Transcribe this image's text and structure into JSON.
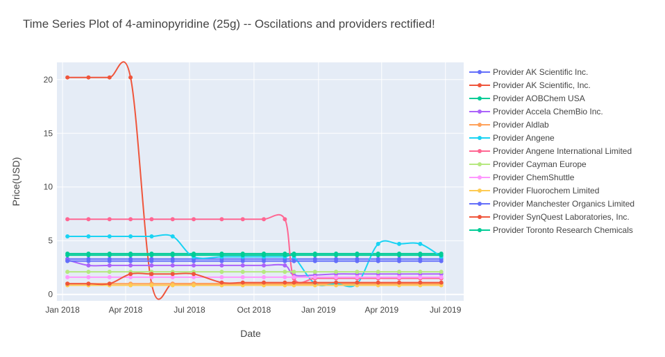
{
  "chart_data": {
    "type": "line",
    "title": "Time Series Plot of 4-aminopyridine (25g) -- Oscilations and providers rectified!",
    "xlabel": "Date",
    "ylabel": "Price(USD)",
    "xlim": [
      "2017-12-24",
      "2019-07-27"
    ],
    "ylim": [
      -0.6,
      21.6
    ],
    "x_ticks": [
      {
        "date": "2018-01-01",
        "label": "Jan 2018"
      },
      {
        "date": "2018-04-01",
        "label": "Apr 2018"
      },
      {
        "date": "2018-07-01",
        "label": "Jul 2018"
      },
      {
        "date": "2018-10-01",
        "label": "Oct 2018"
      },
      {
        "date": "2019-01-01",
        "label": "Jan 2019"
      },
      {
        "date": "2019-04-01",
        "label": "Apr 2019"
      },
      {
        "date": "2019-07-01",
        "label": "Jul 2019"
      }
    ],
    "y_ticks": [
      0,
      5,
      10,
      15,
      20
    ],
    "grid": true,
    "legend_position": "right",
    "plot_bgcolor": "#e5ecf6",
    "series": [
      {
        "name": "Provider AK Scientific Inc.",
        "color": "#636efa",
        "x": [
          "2018-01-08",
          "2018-02-07",
          "2018-03-09",
          "2018-04-08",
          "2018-05-08",
          "2018-06-07",
          "2018-07-07",
          "2018-08-16",
          "2018-09-15",
          "2018-10-15",
          "2018-11-14",
          "2018-11-27",
          "2018-12-27",
          "2019-01-26",
          "2019-02-25",
          "2019-03-27",
          "2019-04-26",
          "2019-05-26",
          "2019-06-25"
        ],
        "y": [
          3.3,
          3.3,
          3.3,
          3.3,
          3.3,
          3.3,
          3.3,
          3.3,
          3.3,
          3.3,
          3.3,
          3.3,
          3.3,
          3.3,
          3.3,
          3.3,
          3.3,
          3.3,
          3.3
        ]
      },
      {
        "name": "Provider AK Scientific, Inc.",
        "color": "#ef553b",
        "x": [
          "2018-01-08",
          "2018-02-07",
          "2018-03-09",
          "2018-04-08",
          "2018-05-08",
          "2018-06-07",
          "2018-07-07",
          "2018-08-16",
          "2018-09-15",
          "2018-10-15",
          "2018-11-14",
          "2018-11-27",
          "2018-12-27",
          "2019-01-26",
          "2019-02-25",
          "2019-03-27",
          "2019-04-26",
          "2019-05-26",
          "2019-06-25"
        ],
        "y": [
          20.2,
          20.2,
          20.2,
          20.2,
          1.0,
          1.0,
          1.0,
          1.0,
          1.0,
          1.0,
          1.0,
          1.0,
          1.0,
          1.0,
          1.0,
          1.0,
          1.0,
          1.0,
          1.0
        ]
      },
      {
        "name": "Provider AOBChem USA",
        "color": "#00cc96",
        "x": [
          "2018-01-08",
          "2018-02-07",
          "2018-03-09",
          "2018-04-08",
          "2018-05-08",
          "2018-06-07",
          "2018-07-07",
          "2018-08-16",
          "2018-09-15",
          "2018-10-15",
          "2018-11-14",
          "2018-11-27",
          "2018-12-27",
          "2019-01-26",
          "2019-02-25",
          "2019-03-27",
          "2019-04-26",
          "2019-05-26",
          "2019-06-25"
        ],
        "y": [
          3.8,
          3.8,
          3.8,
          3.8,
          3.8,
          3.8,
          3.8,
          3.8,
          3.8,
          3.8,
          3.8,
          3.8,
          3.8,
          3.8,
          3.8,
          3.8,
          3.8,
          3.8,
          3.8
        ]
      },
      {
        "name": "Provider Accela ChemBio Inc.",
        "color": "#ab63fa",
        "x": [
          "2018-01-08",
          "2018-02-07",
          "2018-03-09",
          "2018-04-08",
          "2018-05-08",
          "2018-06-07",
          "2018-07-07",
          "2018-08-16",
          "2018-09-15",
          "2018-10-15",
          "2018-11-14",
          "2018-11-27",
          "2018-12-27",
          "2019-01-26",
          "2019-02-25",
          "2019-03-27",
          "2019-04-26",
          "2019-05-26",
          "2019-06-25"
        ],
        "y": [
          3.2,
          2.7,
          2.7,
          2.7,
          2.7,
          2.7,
          2.7,
          2.7,
          2.7,
          2.7,
          2.7,
          1.8,
          1.8,
          1.9,
          1.9,
          1.9,
          1.9,
          1.9,
          1.9
        ]
      },
      {
        "name": "Provider Aldlab",
        "color": "#ffa15a",
        "x": [
          "2018-01-08",
          "2018-02-07",
          "2018-03-09",
          "2018-04-08",
          "2018-05-08",
          "2018-06-07",
          "2018-07-07",
          "2018-08-16",
          "2018-09-15",
          "2018-10-15",
          "2018-11-14",
          "2018-11-27",
          "2018-12-27",
          "2019-01-26",
          "2019-02-25",
          "2019-03-27",
          "2019-04-26",
          "2019-05-26",
          "2019-06-25"
        ],
        "y": [
          1.0,
          1.0,
          1.0,
          1.0,
          1.0,
          1.0,
          1.0,
          1.0,
          1.0,
          1.0,
          1.0,
          1.0,
          1.0,
          1.0,
          1.0,
          1.0,
          1.0,
          1.0,
          1.0
        ]
      },
      {
        "name": "Provider Angene",
        "color": "#19d3f3",
        "x": [
          "2018-01-08",
          "2018-02-07",
          "2018-03-09",
          "2018-04-08",
          "2018-05-08",
          "2018-06-07",
          "2018-07-07",
          "2018-08-16",
          "2018-09-15",
          "2018-10-15",
          "2018-11-14",
          "2018-11-27",
          "2018-12-27",
          "2019-01-26",
          "2019-02-25",
          "2019-03-27",
          "2019-04-26",
          "2019-05-26",
          "2019-06-25"
        ],
        "y": [
          5.4,
          5.4,
          5.4,
          5.4,
          5.4,
          5.4,
          3.5,
          3.5,
          3.5,
          3.5,
          3.5,
          3.5,
          1.0,
          1.0,
          1.0,
          4.7,
          4.7,
          4.7,
          3.5
        ]
      },
      {
        "name": "Provider Angene International Limited",
        "color": "#ff6692",
        "x": [
          "2018-01-08",
          "2018-02-07",
          "2018-03-09",
          "2018-04-08",
          "2018-05-08",
          "2018-06-07",
          "2018-07-07",
          "2018-08-16",
          "2018-09-15",
          "2018-10-15",
          "2018-11-14",
          "2018-11-27",
          "2018-12-27",
          "2019-01-26",
          "2019-02-25",
          "2019-03-27",
          "2019-04-26",
          "2019-05-26",
          "2019-06-25"
        ],
        "y": [
          7.0,
          7.0,
          7.0,
          7.0,
          7.0,
          7.0,
          7.0,
          7.0,
          7.0,
          7.0,
          7.0,
          1.5,
          1.5,
          1.5,
          1.5,
          1.5,
          1.5,
          1.5,
          1.5
        ]
      },
      {
        "name": "Provider Cayman Europe",
        "color": "#b6e880",
        "x": [
          "2018-01-08",
          "2018-02-07",
          "2018-03-09",
          "2018-04-08",
          "2018-05-08",
          "2018-06-07",
          "2018-07-07",
          "2018-08-16",
          "2018-09-15",
          "2018-10-15",
          "2018-11-14",
          "2018-11-27",
          "2018-12-27",
          "2019-01-26",
          "2019-02-25",
          "2019-03-27",
          "2019-04-26",
          "2019-05-26",
          "2019-06-25"
        ],
        "y": [
          2.1,
          2.1,
          2.1,
          2.1,
          2.1,
          2.1,
          2.1,
          2.1,
          2.1,
          2.1,
          2.1,
          2.1,
          2.1,
          2.1,
          2.1,
          2.1,
          2.1,
          2.1,
          2.1
        ]
      },
      {
        "name": "Provider ChemShuttle",
        "color": "#ff97ff",
        "x": [
          "2018-01-08",
          "2018-02-07",
          "2018-03-09",
          "2018-04-08",
          "2018-05-08",
          "2018-06-07",
          "2018-07-07",
          "2018-08-16",
          "2018-09-15",
          "2018-10-15",
          "2018-11-14",
          "2018-11-27",
          "2018-12-27",
          "2019-01-26",
          "2019-02-25",
          "2019-03-27",
          "2019-04-26",
          "2019-05-26",
          "2019-06-25"
        ],
        "y": [
          1.6,
          1.6,
          1.6,
          1.6,
          1.6,
          1.6,
          1.6,
          1.6,
          1.6,
          1.6,
          1.6,
          1.6,
          1.6,
          1.6,
          1.6,
          1.6,
          1.6,
          1.6,
          1.6
        ]
      },
      {
        "name": "Provider Fluorochem Limited",
        "color": "#fecb52",
        "x": [
          "2018-01-08",
          "2018-02-07",
          "2018-03-09",
          "2018-04-08",
          "2018-05-08",
          "2018-06-07",
          "2018-07-07",
          "2018-08-16",
          "2018-09-15",
          "2018-10-15",
          "2018-11-14",
          "2018-11-27",
          "2018-12-27",
          "2019-01-26",
          "2019-02-25",
          "2019-03-27",
          "2019-04-26",
          "2019-05-26",
          "2019-06-25"
        ],
        "y": [
          0.85,
          0.85,
          0.85,
          0.85,
          0.85,
          0.85,
          0.85,
          0.85,
          0.85,
          0.85,
          0.85,
          0.85,
          0.85,
          0.85,
          0.85,
          0.85,
          0.85,
          0.85,
          0.85
        ]
      },
      {
        "name": "Provider Manchester Organics Limited",
        "color": "#636efa",
        "x": [
          "2018-01-08",
          "2018-02-07",
          "2018-03-09",
          "2018-04-08",
          "2018-05-08",
          "2018-06-07",
          "2018-07-07",
          "2018-08-16",
          "2018-09-15",
          "2018-10-15",
          "2018-11-14",
          "2018-11-27",
          "2018-12-27",
          "2019-01-26",
          "2019-02-25",
          "2019-03-27",
          "2019-04-26",
          "2019-05-26",
          "2019-06-25"
        ],
        "y": [
          3.1,
          3.1,
          3.1,
          3.1,
          3.1,
          3.1,
          3.1,
          3.1,
          3.1,
          3.1,
          3.1,
          3.1,
          3.1,
          3.1,
          3.1,
          3.1,
          3.1,
          3.1,
          3.1
        ]
      },
      {
        "name": "Provider SynQuest Laboratories, Inc.",
        "color": "#ef553b",
        "x": [
          "2018-01-08",
          "2018-02-07",
          "2018-03-09",
          "2018-04-08",
          "2018-05-08",
          "2018-06-07",
          "2018-07-07",
          "2018-08-16",
          "2018-09-15",
          "2018-10-15",
          "2018-11-14",
          "2018-11-27",
          "2018-12-27",
          "2019-01-26",
          "2019-02-25",
          "2019-03-27",
          "2019-04-26",
          "2019-05-26",
          "2019-06-25"
        ],
        "y": [
          1.0,
          1.0,
          1.0,
          1.9,
          1.9,
          1.9,
          1.9,
          1.1,
          1.1,
          1.1,
          1.1,
          1.1,
          1.1,
          1.1,
          1.1,
          1.1,
          1.1,
          1.1,
          1.1
        ]
      },
      {
        "name": "Provider Toronto Research Chemicals",
        "color": "#00cc96",
        "x": [
          "2018-01-08",
          "2018-02-07",
          "2018-03-09",
          "2018-04-08",
          "2018-05-08",
          "2018-06-07",
          "2018-07-07",
          "2018-08-16",
          "2018-09-15",
          "2018-10-15",
          "2018-11-14",
          "2018-11-27",
          "2018-12-27",
          "2019-01-26",
          "2019-02-25",
          "2019-03-27",
          "2019-04-26",
          "2019-05-26",
          "2019-06-25"
        ],
        "y": [
          3.65,
          3.65,
          3.65,
          3.65,
          3.65,
          3.65,
          3.65,
          3.65,
          3.65,
          3.65,
          3.65,
          3.65,
          3.65,
          3.65,
          3.65,
          3.65,
          3.65,
          3.65,
          3.65
        ]
      }
    ]
  }
}
